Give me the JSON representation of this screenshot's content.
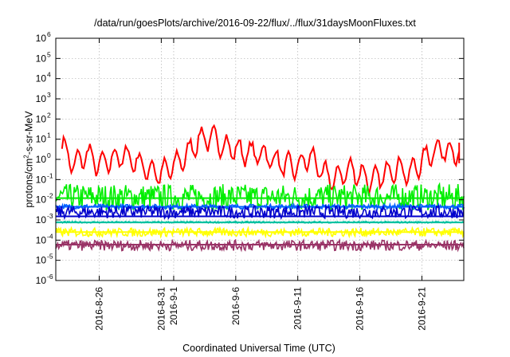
{
  "chart_data": {
    "type": "line",
    "title": "/data/run/goesPlots/archive/2016-09-22/flux/../flux/31daysMoonFluxes.txt",
    "xlabel": "Coordinated Universal Time (UTC)",
    "ylabel_main": "protons/cm",
    "ylabel_sup": "2",
    "ylabel_rest": "-s-sr-MeV",
    "yscale": "log",
    "ylim": [
      1e-06,
      1000000.0
    ],
    "xlim": [
      "2016-08-22T12:00",
      "2016-09-24T09:00"
    ],
    "grid": true,
    "y_ticks": [
      {
        "base": "10",
        "exp": "-6",
        "value": 1e-06
      },
      {
        "base": "10",
        "exp": "-5",
        "value": 1e-05
      },
      {
        "base": "10",
        "exp": "-4",
        "value": 0.0001
      },
      {
        "base": "10",
        "exp": "-3",
        "value": 0.001
      },
      {
        "base": "10",
        "exp": "-2",
        "value": 0.01
      },
      {
        "base": "10",
        "exp": "-1",
        "value": 0.1
      },
      {
        "base": "10",
        "exp": "0",
        "value": 1
      },
      {
        "base": "10",
        "exp": "1",
        "value": 10
      },
      {
        "base": "10",
        "exp": "2",
        "value": 100
      },
      {
        "base": "10",
        "exp": "3",
        "value": 1000
      },
      {
        "base": "10",
        "exp": "4",
        "value": 10000
      },
      {
        "base": "10",
        "exp": "5",
        "value": 100000
      },
      {
        "base": "10",
        "exp": "6",
        "value": 1000000
      }
    ],
    "x_ticks": [
      {
        "label": "2016-8-26",
        "date": "2016-08-26"
      },
      {
        "label": "2016-8-31",
        "date": "2016-08-31"
      },
      {
        "label": "2016-9-1",
        "date": "2016-09-01"
      },
      {
        "label": "2016-9-6",
        "date": "2016-09-06"
      },
      {
        "label": "2016-9-11",
        "date": "2016-09-11"
      },
      {
        "label": "2016-9-16",
        "date": "2016-09-16"
      },
      {
        "label": "2016-9-21",
        "date": "2016-09-21"
      }
    ],
    "series": [
      {
        "color": "#ff0000",
        "x": [
          "2016-08-23",
          "2016-08-24",
          "2016-08-25",
          "2016-08-26",
          "2016-08-27",
          "2016-08-28",
          "2016-08-29",
          "2016-08-30",
          "2016-08-31",
          "2016-09-01",
          "2016-09-02",
          "2016-09-03",
          "2016-09-04",
          "2016-09-05",
          "2016-09-06",
          "2016-09-07",
          "2016-09-08",
          "2016-09-09",
          "2016-09-10",
          "2016-09-11",
          "2016-09-12",
          "2016-09-13",
          "2016-09-14",
          "2016-09-15",
          "2016-09-16",
          "2016-09-17",
          "2016-09-18",
          "2016-09-19",
          "2016-09-20",
          "2016-09-21",
          "2016-09-22",
          "2016-09-23",
          "2016-09-24"
        ],
        "values": [
          5,
          0.5,
          2,
          0.5,
          1,
          1.5,
          0.8,
          0.3,
          0.2,
          0.5,
          1.5,
          10,
          12,
          5,
          3,
          2,
          2,
          1,
          0.5,
          0.4,
          1.5,
          0.2,
          0.1,
          0.3,
          0.2,
          0.08,
          0.2,
          0.4,
          0.2,
          0.8,
          3,
          3,
          2
        ]
      },
      {
        "color": "#00ee00",
        "x": [
          "2016-08-22T12:00",
          "2016-09-24T09:00"
        ],
        "values": [
          0.012,
          0.012
        ],
        "band": [
          0.003,
          0.06
        ]
      },
      {
        "color": "#0060ff",
        "x": [
          "2016-08-22T12:00",
          "2016-09-24T09:00"
        ],
        "values": [
          0.0045,
          0.0045
        ],
        "band": [
          0.0035,
          0.006
        ]
      },
      {
        "color": "#0000cc",
        "x": [
          "2016-08-22T12:00",
          "2016-09-24T09:00"
        ],
        "values": [
          0.0015,
          0.0015
        ],
        "band": [
          0.0012,
          0.005
        ]
      },
      {
        "color": "#00c0a0",
        "x": [
          "2016-08-22T12:00",
          "2016-09-24T09:00"
        ],
        "values": [
          0.00075,
          0.00075
        ],
        "band": [
          0.0007,
          0.00085
        ]
      },
      {
        "color": "#ffff00",
        "x": [
          "2016-08-22T12:00",
          "2016-09-24T09:00"
        ],
        "values": [
          0.00025,
          0.00025
        ],
        "band": [
          0.00015,
          0.0004
        ]
      },
      {
        "color": "#993366",
        "x": [
          "2016-08-22T12:00",
          "2016-09-24T09:00"
        ],
        "values": [
          6e-05,
          6e-05
        ],
        "band": [
          3e-05,
          0.0001
        ]
      }
    ]
  }
}
